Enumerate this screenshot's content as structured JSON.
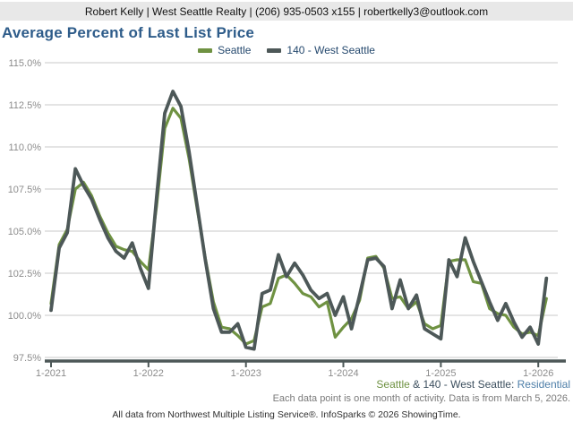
{
  "header": {
    "contact_line": "Robert Kelly | West Seattle Realty | (206) 935-0503 x155 | robertkelly3@outlook.com"
  },
  "title": "Average Percent of Last List Price",
  "chart_data": {
    "type": "line",
    "title": "Average Percent of Last List Price",
    "grid": "horizontal",
    "legend_position": "top-center",
    "y_format": "percent",
    "ylim": [
      97.5,
      115.0
    ],
    "yticks": [
      115.0,
      112.5,
      110.0,
      107.5,
      105.0,
      102.5,
      100.0,
      97.5
    ],
    "xticks": [
      {
        "index": 0,
        "label": "1-2021"
      },
      {
        "index": 12,
        "label": "1-2022"
      },
      {
        "index": 24,
        "label": "1-2023"
      },
      {
        "index": 36,
        "label": "1-2024"
      },
      {
        "index": 48,
        "label": "1-2025"
      },
      {
        "index": 60,
        "label": "1-2026"
      }
    ],
    "x_labels": [
      "1-2021",
      "2-2021",
      "3-2021",
      "4-2021",
      "5-2021",
      "6-2021",
      "7-2021",
      "8-2021",
      "9-2021",
      "10-2021",
      "11-2021",
      "12-2021",
      "1-2022",
      "2-2022",
      "3-2022",
      "4-2022",
      "5-2022",
      "6-2022",
      "7-2022",
      "8-2022",
      "9-2022",
      "10-2022",
      "11-2022",
      "12-2022",
      "1-2023",
      "2-2023",
      "3-2023",
      "4-2023",
      "5-2023",
      "6-2023",
      "7-2023",
      "8-2023",
      "9-2023",
      "10-2023",
      "11-2023",
      "12-2023",
      "1-2024",
      "2-2024",
      "3-2024",
      "4-2024",
      "5-2024",
      "6-2024",
      "7-2024",
      "8-2024",
      "9-2024",
      "10-2024",
      "11-2024",
      "12-2024",
      "1-2025",
      "2-2025",
      "3-2025",
      "4-2025",
      "5-2025",
      "6-2025",
      "7-2025",
      "8-2025",
      "9-2025",
      "10-2025",
      "11-2025",
      "12-2025",
      "1-2026",
      "2-2026"
    ],
    "series": [
      {
        "name": "Seattle",
        "color": "#6f9242",
        "values": [
          100.7,
          104.2,
          105.1,
          107.5,
          107.9,
          107.1,
          105.9,
          104.9,
          104.1,
          103.9,
          103.8,
          103.2,
          102.7,
          106.5,
          111.1,
          112.3,
          111.7,
          109.3,
          106.3,
          103.4,
          100.8,
          99.3,
          99.2,
          98.8,
          98.3,
          98.5,
          100.5,
          100.7,
          102.2,
          102.4,
          101.9,
          101.3,
          101.1,
          100.5,
          100.8,
          98.7,
          99.3,
          99.8,
          100.9,
          103.4,
          103.5,
          102.8,
          101.0,
          101.1,
          100.4,
          100.8,
          99.5,
          99.2,
          99.4,
          103.2,
          103.3,
          103.3,
          102.0,
          101.9,
          100.4,
          100.1,
          100.0,
          99.3,
          98.9,
          99.0,
          98.8,
          101.0
        ]
      },
      {
        "name": "140 - West Seattle",
        "color": "#4d5858",
        "values": [
          100.3,
          104.0,
          104.9,
          108.7,
          107.7,
          106.9,
          105.7,
          104.6,
          103.8,
          103.4,
          104.3,
          102.8,
          101.6,
          107.0,
          112.0,
          113.3,
          112.4,
          109.7,
          106.5,
          103.3,
          100.4,
          99.0,
          99.0,
          99.5,
          98.1,
          98.0,
          101.3,
          101.5,
          103.6,
          102.3,
          103.1,
          102.4,
          101.5,
          101.0,
          101.3,
          100.0,
          101.1,
          99.2,
          101.2,
          103.3,
          103.4,
          102.9,
          100.4,
          102.1,
          100.4,
          101.2,
          99.2,
          98.9,
          98.6,
          103.3,
          102.3,
          104.6,
          103.2,
          102.0,
          100.8,
          99.7,
          100.7,
          99.6,
          98.7,
          99.3,
          98.3,
          102.2
        ]
      }
    ]
  },
  "footer": {
    "attribution": {
      "seattle": "Seattle",
      "amp": " & ",
      "area": "140 - West Seattle:",
      "type": " Residential"
    },
    "data_note": "Each data point is one month of activity. Data is from March 5, 2026.",
    "credit": "All data from Northwest Multiple Listing Service®. InfoSparks © 2026 ShowingTime."
  },
  "colors": {
    "seattle_line": "#6f9242",
    "west_seattle_line": "#4d5858",
    "title_blue": "#2e5c8a",
    "residential_blue": "#4d7ea8",
    "header_bg": "#e8e8e8",
    "gridline": "#c9c9c9",
    "axis_label": "#8c8c8c"
  }
}
